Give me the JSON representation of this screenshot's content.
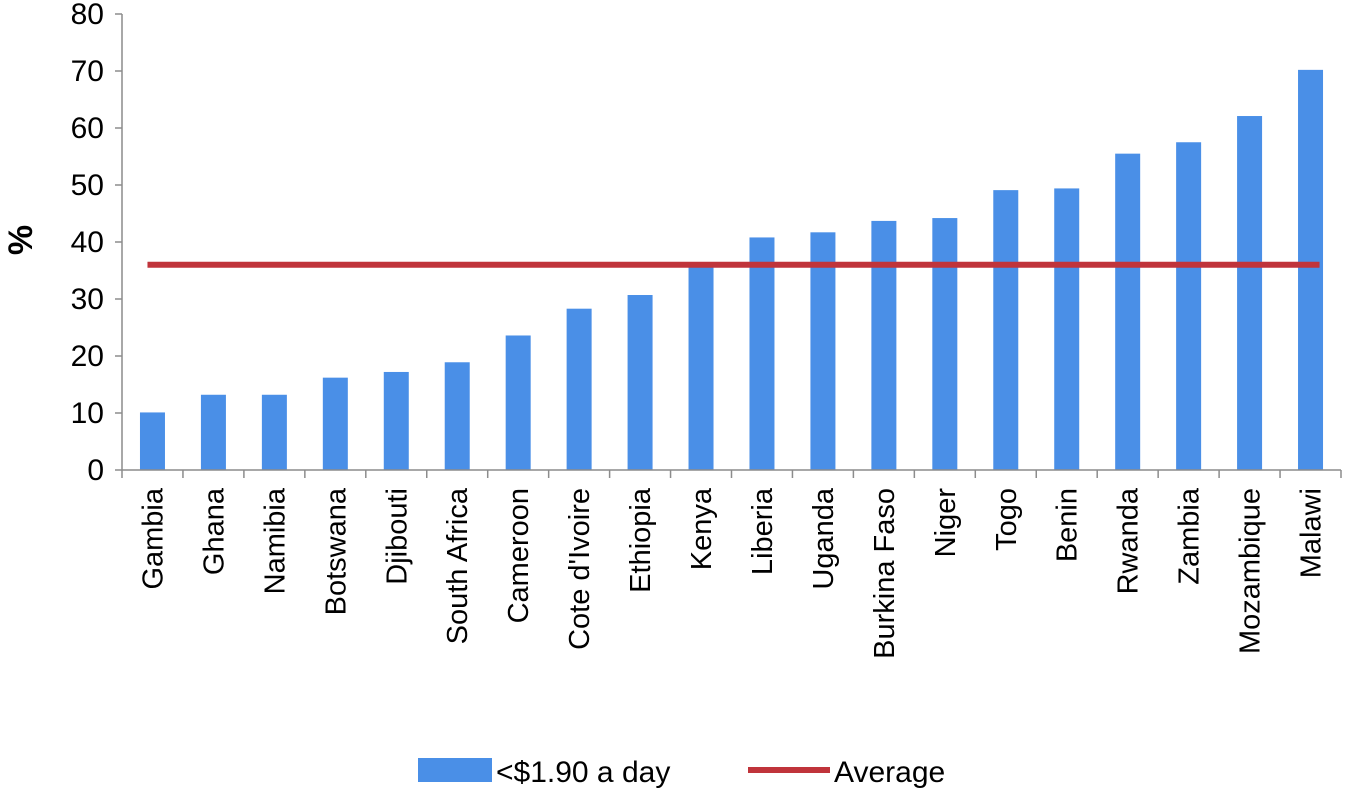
{
  "chart_data": {
    "type": "bar",
    "categories": [
      "Gambia",
      "Ghana",
      "Namibia",
      "Botswana",
      "Djibouti",
      "South Africa",
      "Cameroon",
      "Cote d'Ivoire",
      "Ethiopia",
      "Kenya",
      "Liberia",
      "Uganda",
      "Burkina Faso",
      "Niger",
      "Togo",
      "Benin",
      "Rwanda",
      "Zambia",
      "Mozambique",
      "Malawi"
    ],
    "series": [
      {
        "name": "<$1.90 a day",
        "type": "bar",
        "color": "#4a8fe7",
        "values": [
          10.1,
          13.2,
          13.2,
          16.2,
          17.2,
          18.9,
          23.6,
          28.3,
          30.7,
          36.0,
          40.8,
          41.7,
          43.7,
          44.2,
          49.1,
          49.4,
          55.5,
          57.5,
          62.1,
          70.2
        ]
      },
      {
        "name": "Average",
        "type": "line",
        "color": "#c0343b",
        "value": 36.0
      }
    ],
    "title": "",
    "xlabel": "",
    "ylabel": "%",
    "ylim": [
      0,
      80
    ],
    "yticks": [
      0,
      10,
      20,
      30,
      40,
      50,
      60,
      70,
      80
    ],
    "grid": false,
    "legend": "bottom"
  }
}
